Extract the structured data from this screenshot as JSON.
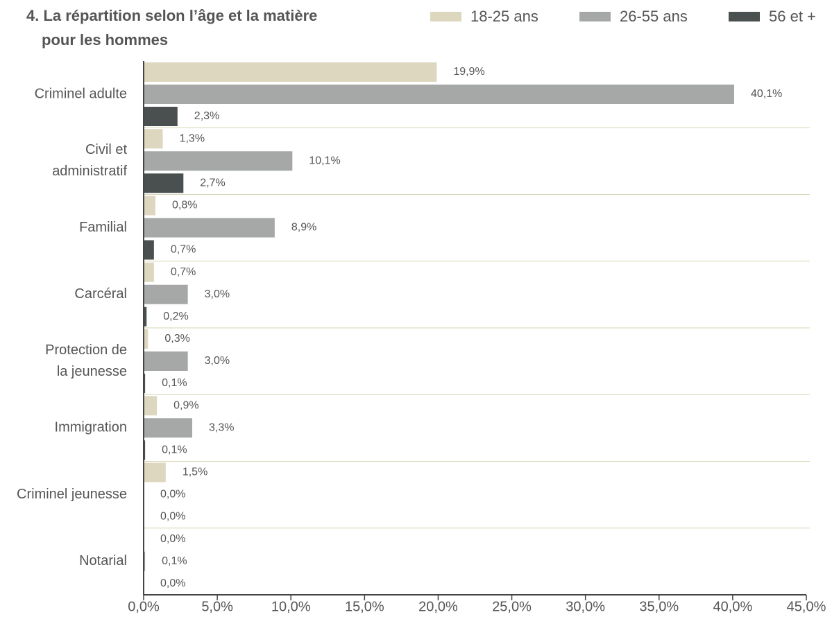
{
  "chart_data": {
    "type": "hbar",
    "title": [
      "4. La répartition selon l’âge et la matière",
      "pour les hommes"
    ],
    "categories": [
      [
        "Criminel adulte"
      ],
      [
        "Civil et",
        "administratif"
      ],
      [
        "Familial"
      ],
      [
        "Carcéral"
      ],
      [
        "Protection de",
        "la jeunesse"
      ],
      [
        "Immigration"
      ],
      [
        "Criminel jeunesse"
      ],
      [
        "Notarial"
      ]
    ],
    "series": [
      {
        "name": "18-25 ans",
        "color": "#ddd7c0",
        "values": [
          19.9,
          1.3,
          0.8,
          0.7,
          0.3,
          0.9,
          1.5,
          0.0
        ],
        "value_labels": [
          "19,9%",
          "1,3%",
          "0,8%",
          "0,7%",
          "0,3%",
          "0,9%",
          "1,5%",
          "0,0%"
        ]
      },
      {
        "name": "26-55 ans",
        "color": "#a6a8a7",
        "values": [
          40.1,
          10.1,
          8.9,
          3.0,
          3.0,
          3.3,
          0.0,
          0.1
        ],
        "value_labels": [
          "40,1%",
          "10,1%",
          "8,9%",
          "3,0%",
          "3,0%",
          "3,3%",
          "0,0%",
          "0,1%"
        ]
      },
      {
        "name": "56 et +",
        "color": "#4a5050",
        "values": [
          2.3,
          2.7,
          0.7,
          0.2,
          0.1,
          0.1,
          0.0,
          0.0
        ],
        "value_labels": [
          "2,3%",
          "2,7%",
          "0,7%",
          "0,2%",
          "0,1%",
          "0,1%",
          "0,0%",
          "0,0%"
        ]
      }
    ],
    "xlim": [
      0,
      45
    ],
    "xticks": [
      {
        "value": 0,
        "label": "0,0%"
      },
      {
        "value": 5,
        "label": "5,0%"
      },
      {
        "value": 10,
        "label": "10,0%"
      },
      {
        "value": 15,
        "label": "15,0%"
      },
      {
        "value": 20,
        "label": "20,0%"
      },
      {
        "value": 25,
        "label": "25,0%"
      },
      {
        "value": 30,
        "label": "30,0%"
      },
      {
        "value": 35,
        "label": "35,0%"
      },
      {
        "value": 40,
        "label": "40,0%"
      },
      {
        "value": 45,
        "label": "45,0%"
      }
    ],
    "legend": "top-right"
  }
}
